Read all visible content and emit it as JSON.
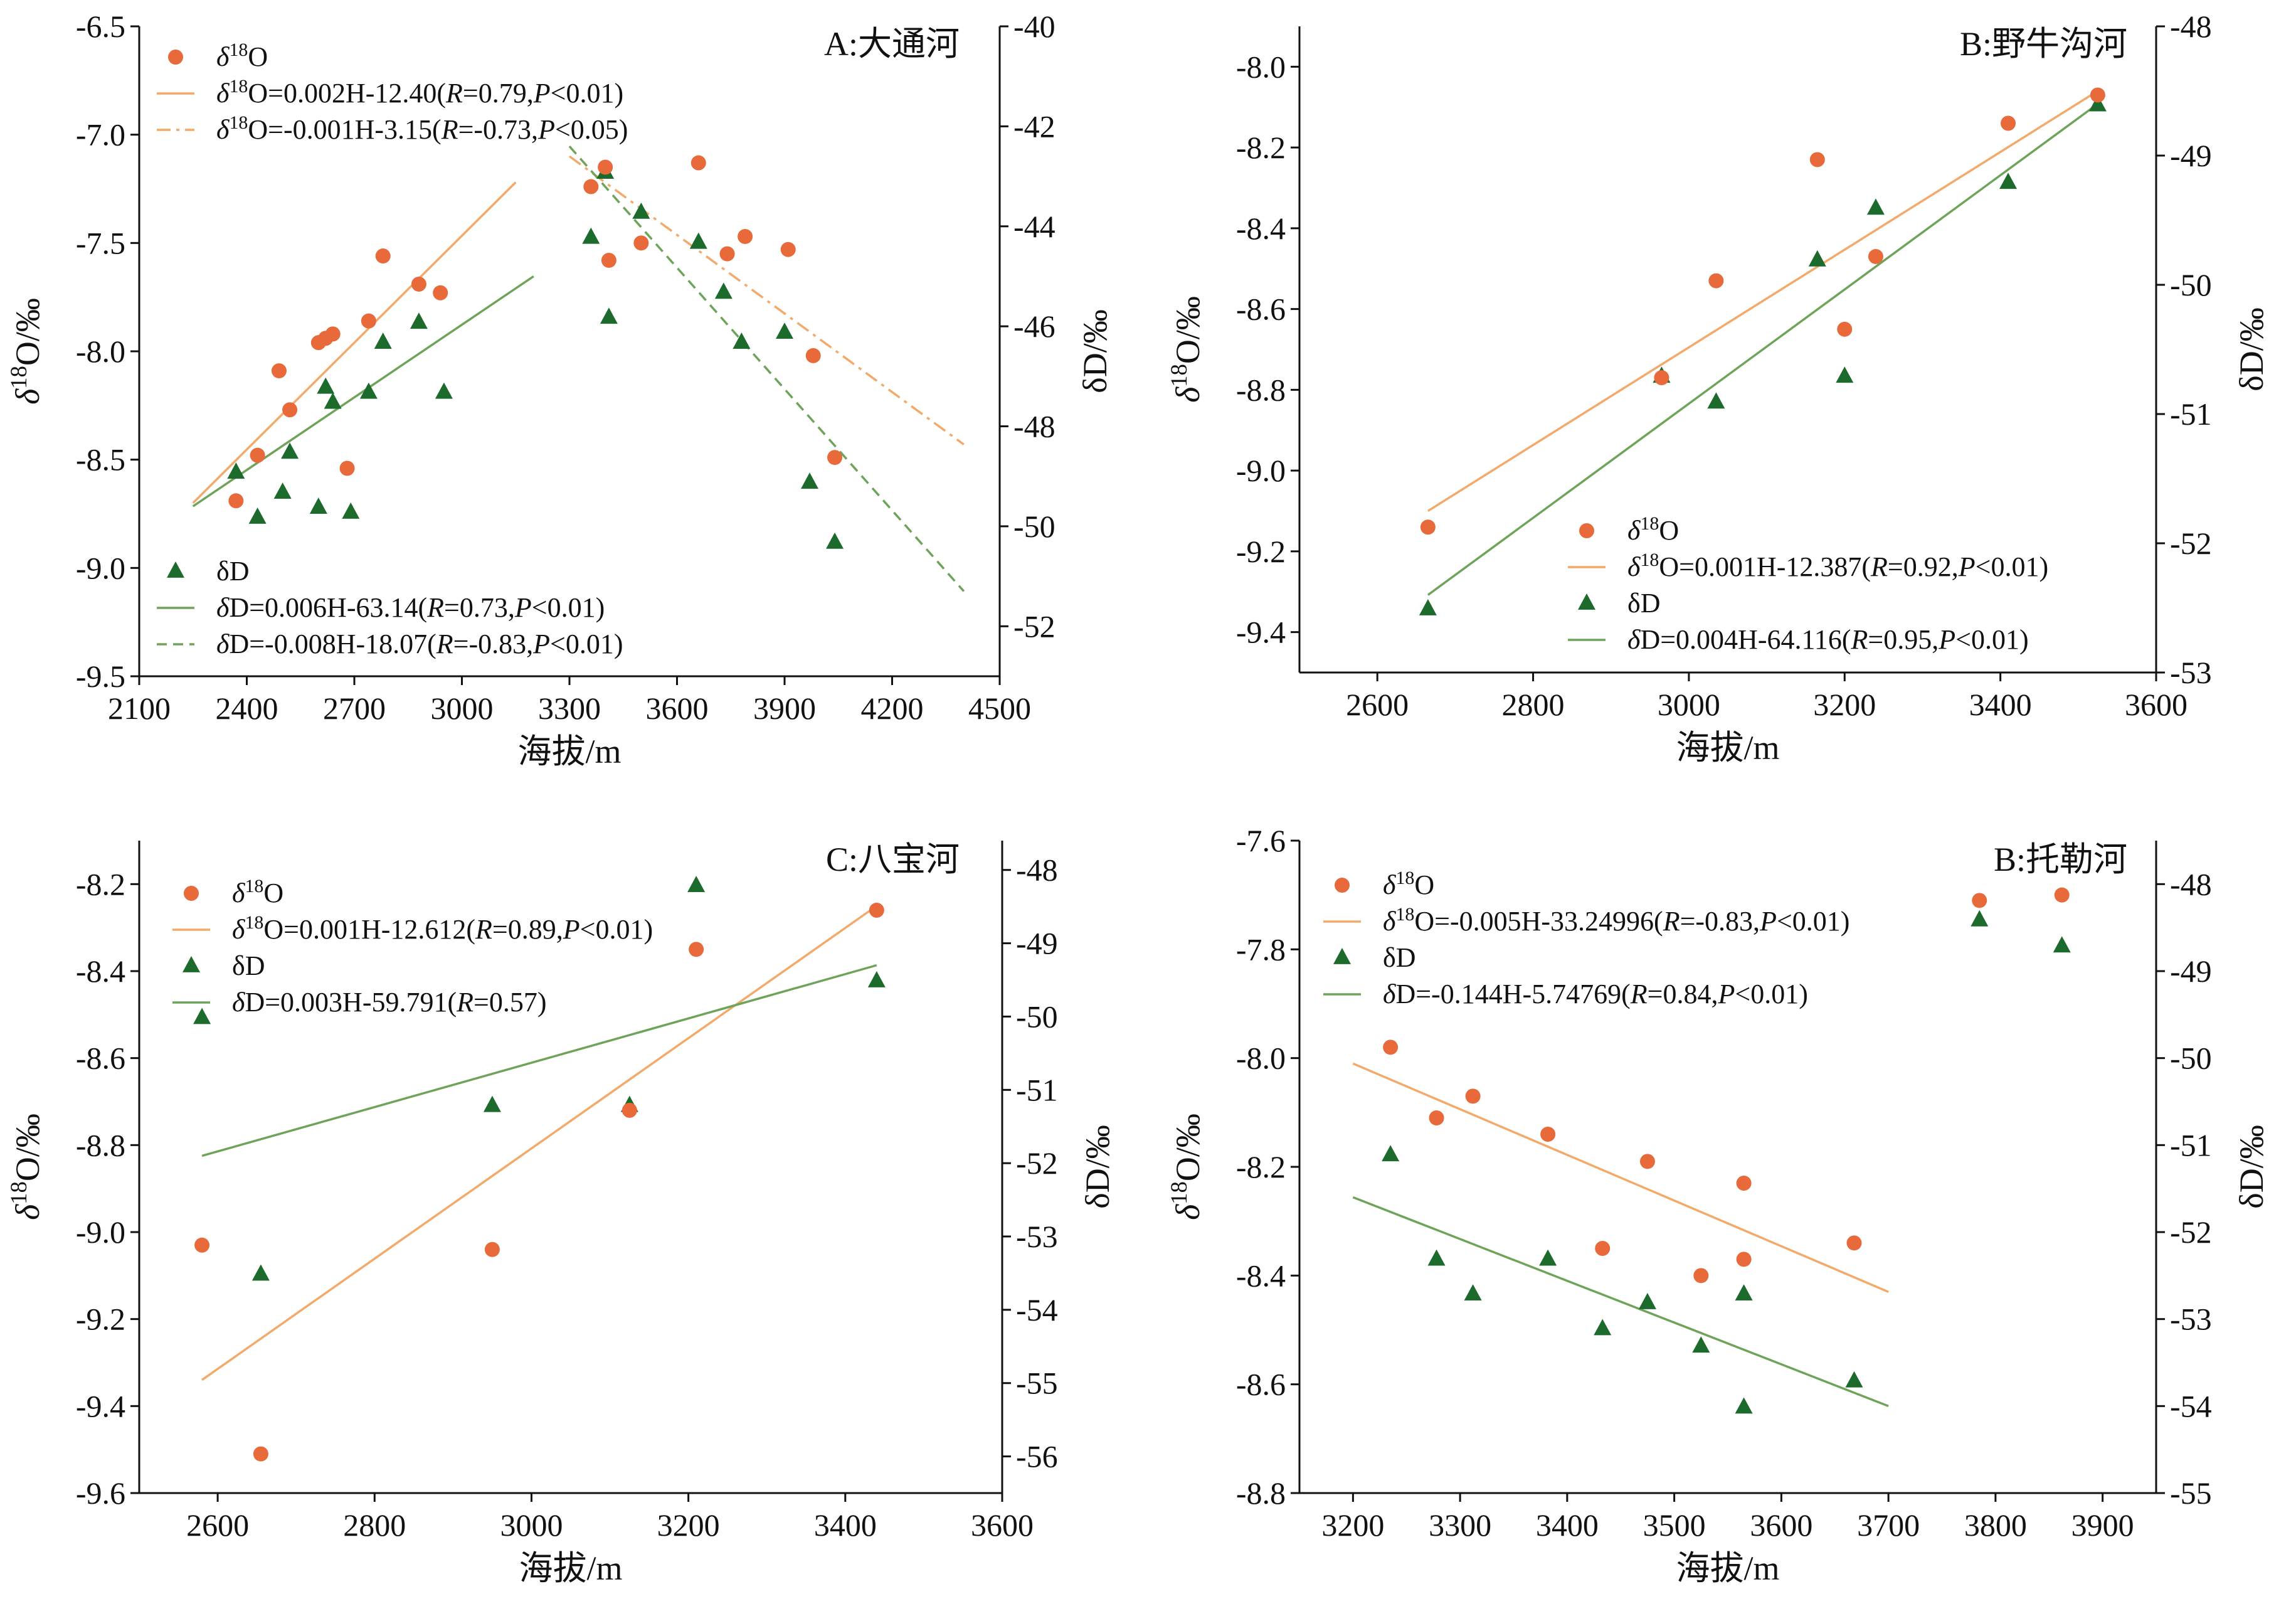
{
  "colors": {
    "o18": "#e8693a",
    "o18_line": "#f2a96a",
    "dd": "#1c6b2d",
    "dd_line": "#6ea35a",
    "axis": "#111111"
  },
  "chart_data": [
    {
      "id": "A",
      "type": "scatter",
      "title": "A:大通河",
      "xlabel": "海拔/m",
      "ylabel": "δ18O/‰",
      "y2label": "δD/‰",
      "xlim": [
        2100,
        4500
      ],
      "xticks": [
        2100,
        2400,
        2700,
        3000,
        3300,
        3600,
        3900,
        4200,
        4500
      ],
      "ylim": [
        -9.5,
        -6.5
      ],
      "yticks": [
        -9.5,
        -9.0,
        -8.5,
        -8.0,
        -7.5,
        -7.0,
        -6.5
      ],
      "yticklabels": [
        "-9.5",
        "-9.0",
        "-8.5",
        "-8.0",
        "-7.5",
        "-7.0",
        "-6.5"
      ],
      "y2lim": [
        -53,
        -40
      ],
      "y2ticks": [
        -52,
        -50,
        -48,
        -46,
        -44,
        -42,
        -40
      ],
      "legend": {
        "o18": "δ18O",
        "o18_fit1": "δ18O=0.002H-12.40(R=0.79,P<0.01)",
        "o18_fit2": "δ18O=-0.001H-3.15(R=-0.73,P<0.05)",
        "dd": "δD",
        "dd_fit1": "δD=0.006H-63.14(R=0.73,P<0.01)",
        "dd_fit2": "δD=-0.008H-18.07(R=-0.83,P<0.01)"
      },
      "o18_points": [
        [
          2370,
          -8.69
        ],
        [
          2430,
          -8.48
        ],
        [
          2490,
          -8.09
        ],
        [
          2520,
          -8.27
        ],
        [
          2600,
          -7.96
        ],
        [
          2620,
          -7.94
        ],
        [
          2640,
          -7.92
        ],
        [
          2680,
          -8.54
        ],
        [
          2740,
          -7.86
        ],
        [
          2780,
          -7.56
        ],
        [
          2880,
          -7.69
        ],
        [
          2940,
          -7.73
        ],
        [
          3360,
          -7.24
        ],
        [
          3400,
          -7.15
        ],
        [
          3410,
          -7.58
        ],
        [
          3500,
          -7.5
        ],
        [
          3660,
          -7.13
        ],
        [
          3740,
          -7.55
        ],
        [
          3790,
          -7.47
        ],
        [
          3910,
          -7.53
        ],
        [
          3980,
          -8.02
        ],
        [
          4040,
          -8.49
        ]
      ],
      "dd_points": [
        [
          2370,
          -48.9
        ],
        [
          2430,
          -49.8
        ],
        [
          2500,
          -49.3
        ],
        [
          2520,
          -48.5
        ],
        [
          2600,
          -49.6
        ],
        [
          2620,
          -47.2
        ],
        [
          2640,
          -47.5
        ],
        [
          2690,
          -49.7
        ],
        [
          2740,
          -47.3
        ],
        [
          2780,
          -46.3
        ],
        [
          2880,
          -45.9
        ],
        [
          2950,
          -47.3
        ],
        [
          3360,
          -44.2
        ],
        [
          3400,
          -42.9
        ],
        [
          3410,
          -45.8
        ],
        [
          3500,
          -43.7
        ],
        [
          3660,
          -44.3
        ],
        [
          3730,
          -45.3
        ],
        [
          3780,
          -46.3
        ],
        [
          3900,
          -46.1
        ],
        [
          3970,
          -49.1
        ],
        [
          4040,
          -50.3
        ]
      ],
      "fits": [
        {
          "series": "o18",
          "axis": "left",
          "style": "solid",
          "x": [
            2250,
            3150
          ],
          "y": [
            -8.7,
            -7.22
          ]
        },
        {
          "series": "o18",
          "axis": "left",
          "style": "dashdot",
          "x": [
            3300,
            4400
          ],
          "y": [
            -7.1,
            -8.43
          ]
        },
        {
          "series": "dd",
          "axis": "right",
          "style": "solid",
          "x": [
            2250,
            3200
          ],
          "y": [
            -49.6,
            -45.0
          ]
        },
        {
          "series": "dd",
          "axis": "right",
          "style": "dashed",
          "x": [
            3300,
            4400
          ],
          "y": [
            -42.4,
            -51.3
          ]
        }
      ]
    },
    {
      "id": "B",
      "type": "scatter",
      "title": "B:野牛沟河",
      "xlabel": "海拔/m",
      "ylabel": "δ18O/‰",
      "y2label": "δD/‰",
      "xlim": [
        2500,
        3600
      ],
      "xticks": [
        2600,
        2800,
        3000,
        3200,
        3400,
        3600
      ],
      "ylim": [
        -9.5,
        -7.9
      ],
      "yticks": [
        -9.4,
        -9.2,
        -9.0,
        -8.8,
        -8.6,
        -8.4,
        -8.2,
        -8.0
      ],
      "yticklabels": [
        "-9.4",
        "-9.2",
        "-9.0",
        "-8.8",
        "-8.6",
        "-8.4",
        "-8.2",
        "-8.0"
      ],
      "y2lim": [
        -53,
        -48
      ],
      "y2ticks": [
        -53,
        -52,
        -51,
        -50,
        -49,
        -48
      ],
      "legend": {
        "o18": "δ18O",
        "o18_fit1": "δ18O=0.001H-12.387(R=0.92,P<0.01)",
        "dd": "δD",
        "dd_fit1": "δD=0.004H-64.116(R=0.95,P<0.01)"
      },
      "o18_points": [
        [
          2665,
          -9.14
        ],
        [
          2965,
          -8.77
        ],
        [
          3035,
          -8.53
        ],
        [
          3165,
          -8.23
        ],
        [
          3200,
          -8.65
        ],
        [
          3240,
          -8.47
        ],
        [
          3410,
          -8.14
        ],
        [
          3525,
          -8.07
        ]
      ],
      "dd_points": [
        [
          2665,
          -52.5
        ],
        [
          2965,
          -50.7
        ],
        [
          3035,
          -50.9
        ],
        [
          3165,
          -49.8
        ],
        [
          3200,
          -50.7
        ],
        [
          3240,
          -49.4
        ],
        [
          3410,
          -49.2
        ],
        [
          3525,
          -48.6
        ]
      ],
      "fits": [
        {
          "series": "o18",
          "axis": "left",
          "style": "solid",
          "x": [
            2665,
            3525
          ],
          "y": [
            -9.1,
            -8.06
          ]
        },
        {
          "series": "dd",
          "axis": "right",
          "style": "solid",
          "x": [
            2665,
            3525
          ],
          "y": [
            -52.4,
            -48.6
          ]
        }
      ]
    },
    {
      "id": "C",
      "type": "scatter",
      "title": "C:八宝河",
      "xlabel": "海拔/m",
      "ylabel": "δ18O/‰",
      "y2label": "δD/‰",
      "xlim": [
        2500,
        3600
      ],
      "xticks": [
        2600,
        2800,
        3000,
        3200,
        3400,
        3600
      ],
      "ylim": [
        -9.6,
        -8.1
      ],
      "yticks": [
        -9.6,
        -9.4,
        -9.2,
        -9.0,
        -8.8,
        -8.6,
        -8.4,
        -8.2
      ],
      "yticklabels": [
        "-9.6",
        "-9.4",
        "-9.2",
        "-9.0",
        "-8.8",
        "-8.6",
        "-8.4",
        "-8.2"
      ],
      "y2lim": [
        -56.5,
        -47.6
      ],
      "y2ticks": [
        -56,
        -55,
        -54,
        -53,
        -52,
        -51,
        -50,
        -49,
        -48
      ],
      "legend": {
        "o18": "δ18O",
        "o18_fit1": "δ18O=0.001H-12.612(R=0.89,P<0.01)",
        "dd": "δD",
        "dd_fit1": "δD=0.003H-59.791(R=0.57)"
      },
      "o18_points": [
        [
          2580,
          -9.03
        ],
        [
          2655,
          -9.51
        ],
        [
          2950,
          -9.04
        ],
        [
          3125,
          -8.72
        ],
        [
          3210,
          -8.35
        ],
        [
          3440,
          -8.26
        ]
      ],
      "dd_points": [
        [
          2580,
          -50.0
        ],
        [
          2655,
          -53.5
        ],
        [
          2950,
          -51.2
        ],
        [
          3125,
          -51.2
        ],
        [
          3210,
          -48.2
        ],
        [
          3440,
          -49.5
        ]
      ],
      "fits": [
        {
          "series": "o18",
          "axis": "left",
          "style": "solid",
          "x": [
            2580,
            3440
          ],
          "y": [
            -9.34,
            -8.25
          ]
        },
        {
          "series": "dd",
          "axis": "right",
          "style": "solid",
          "x": [
            2580,
            3440
          ],
          "y": [
            -51.9,
            -49.3
          ]
        }
      ]
    },
    {
      "id": "D",
      "type": "scatter",
      "title": "B:托勒河",
      "xlabel": "海拔/m",
      "ylabel": "δ18O/‰",
      "y2label": "δD/‰",
      "xlim": [
        3150,
        3950
      ],
      "xticks": [
        3200,
        3300,
        3400,
        3500,
        3600,
        3700,
        3800,
        3900
      ],
      "ylim": [
        -8.8,
        -7.6
      ],
      "yticks": [
        -8.8,
        -8.6,
        -8.4,
        -8.2,
        -8.0,
        -7.8,
        -7.6
      ],
      "yticklabels": [
        "-8.8",
        "-8.6",
        "-8.4",
        "-8.2",
        "-8.0",
        "-7.8",
        "-7.6"
      ],
      "y2lim": [
        -55,
        -47.5
      ],
      "y2ticks": [
        -55,
        -54,
        -53,
        -52,
        -51,
        -50,
        -49,
        -48
      ],
      "legend": {
        "o18": "δ18O",
        "o18_fit1": "δ18O=-0.005H-33.24996(R=-0.83,P<0.01)",
        "dd": "δD",
        "dd_fit1": "δD=-0.144H-5.74769(R=0.84,P<0.01)"
      },
      "o18_points": [
        [
          3235,
          -7.98
        ],
        [
          3278,
          -8.11
        ],
        [
          3312,
          -8.07
        ],
        [
          3382,
          -8.14
        ],
        [
          3433,
          -8.35
        ],
        [
          3475,
          -8.19
        ],
        [
          3525,
          -8.4
        ],
        [
          3565,
          -8.37
        ],
        [
          3565,
          -8.23
        ],
        [
          3668,
          -8.34
        ],
        [
          3785,
          -7.71
        ],
        [
          3862,
          -7.7
        ]
      ],
      "dd_points": [
        [
          3235,
          -51.1
        ],
        [
          3278,
          -52.3
        ],
        [
          3312,
          -52.7
        ],
        [
          3382,
          -52.3
        ],
        [
          3433,
          -53.1
        ],
        [
          3475,
          -52.8
        ],
        [
          3525,
          -53.3
        ],
        [
          3565,
          -52.7
        ],
        [
          3565,
          -54.0
        ],
        [
          3668,
          -53.7
        ],
        [
          3785,
          -48.4
        ],
        [
          3862,
          -48.7
        ]
      ],
      "fits": [
        {
          "series": "o18",
          "axis": "left",
          "style": "solid",
          "x": [
            3200,
            3700
          ],
          "y": [
            -8.01,
            -8.43
          ]
        },
        {
          "series": "dd",
          "axis": "right",
          "style": "solid",
          "x": [
            3200,
            3700
          ],
          "y": [
            -51.6,
            -54.0
          ]
        }
      ]
    }
  ]
}
